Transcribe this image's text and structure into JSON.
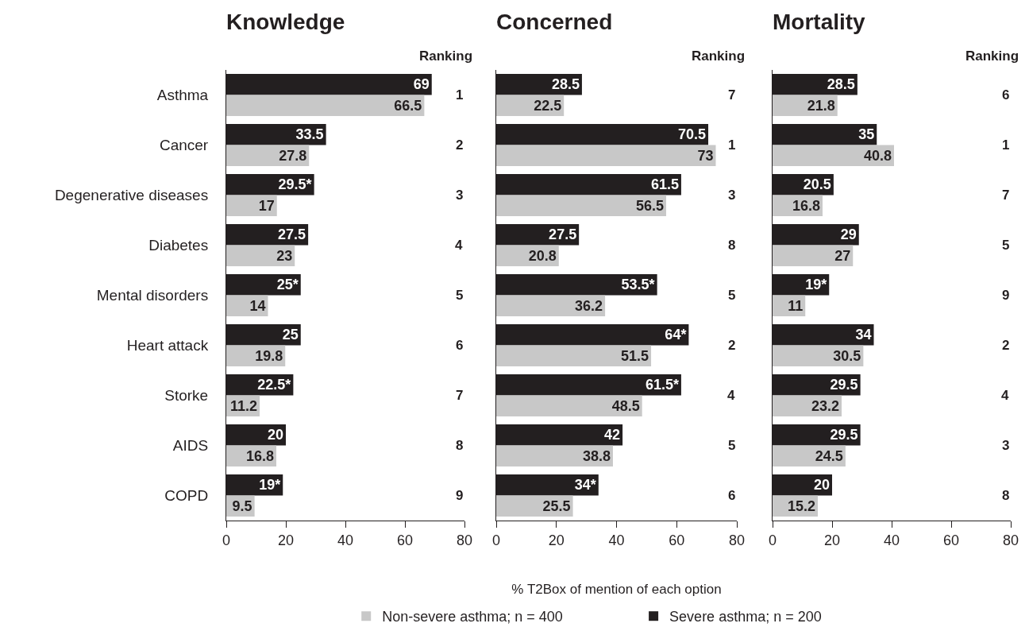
{
  "chart_data": [
    {
      "type": "bar",
      "orientation": "horizontal",
      "title": "Knowledge",
      "categories": [
        "Asthma",
        "Cancer",
        "Degenerative diseases",
        "Diabetes",
        "Mental disorders",
        "Heart attack",
        "Storke",
        "AIDS",
        "COPD"
      ],
      "xlim": [
        0,
        80
      ],
      "xticks": [
        0,
        20,
        40,
        60,
        80
      ],
      "grid": false,
      "series": [
        {
          "color": "#231f20",
          "values": [
            69,
            33.5,
            29.5,
            27.5,
            25,
            25,
            22.5,
            20,
            19
          ],
          "value_labels": [
            "69",
            "33.5",
            "29.5*",
            "27.5",
            "25*",
            "25",
            "22.5*",
            "20",
            "19*"
          ]
        },
        {
          "color": "#c8c8c8",
          "values": [
            66.5,
            27.8,
            17,
            23,
            14,
            19.8,
            11.2,
            16.8,
            9.5
          ],
          "value_labels": [
            "66.5",
            "27.8",
            "17",
            "23",
            "14",
            "19.8",
            "11.2",
            "16.8",
            "9.5"
          ]
        }
      ],
      "annotations": [
        "Ranking",
        "1",
        "2",
        "3",
        "4",
        "5",
        "6",
        "7",
        "8",
        "9"
      ]
    },
    {
      "type": "bar",
      "orientation": "horizontal",
      "title": "Concerned",
      "xlabel": "% T2Box of mention of each option",
      "legend": "bottom",
      "tick_labels": "x",
      "categories": [
        null,
        null,
        null,
        null,
        null,
        null,
        null,
        null,
        null
      ],
      "xlim": [
        0,
        80
      ],
      "xticks": [
        0,
        20,
        40,
        60,
        80
      ],
      "grid": false,
      "series": [
        {
          "name": "Severe asthma; n = 200",
          "color": "#231f20",
          "values": [
            28.5,
            70.5,
            61.5,
            27.5,
            53.5,
            64,
            61.5,
            42,
            34
          ],
          "value_labels": [
            "28.5",
            "70.5",
            "61.5",
            "27.5",
            "53.5*",
            "64*",
            "61.5*",
            "42",
            "34*"
          ]
        },
        {
          "name": "Non-severe asthma; n = 400",
          "color": "#c8c8c8",
          "values": [
            22.5,
            73,
            56.5,
            20.8,
            36.2,
            51.5,
            48.5,
            38.8,
            25.5
          ],
          "value_labels": [
            "22.5",
            "73",
            "56.5",
            "20.8",
            "36.2",
            "51.5",
            "48.5",
            "38.8",
            "25.5"
          ]
        }
      ],
      "annotations": [
        "Ranking",
        "7",
        "1",
        "3",
        "8",
        "5",
        "2",
        "4",
        "5",
        "6"
      ]
    },
    {
      "type": "bar",
      "orientation": "horizontal",
      "title": "Mortality",
      "tick_labels": "x",
      "categories": [
        null,
        null,
        null,
        null,
        null,
        null,
        null,
        null,
        null
      ],
      "xlim": [
        0,
        80
      ],
      "xticks": [
        0,
        20,
        40,
        60,
        80
      ],
      "grid": false,
      "series": [
        {
          "color": "#231f20",
          "values": [
            28.5,
            35,
            20.5,
            29,
            19,
            34,
            29.5,
            29.5,
            20
          ],
          "value_labels": [
            "28.5",
            "35",
            "20.5",
            "29",
            "19*",
            "34",
            "29.5",
            "29.5",
            "20"
          ]
        },
        {
          "color": "#c8c8c8",
          "values": [
            21.8,
            40.8,
            16.8,
            27,
            11,
            30.5,
            23.2,
            24.5,
            15.2
          ],
          "value_labels": [
            "21.8",
            "40.8",
            "16.8",
            "27",
            "11",
            "30.5",
            "23.2",
            "24.5",
            "15.2"
          ]
        }
      ],
      "annotations": [
        "Ranking",
        "6",
        "1",
        "7",
        "5",
        "9",
        "2",
        "4",
        "3",
        "8"
      ]
    }
  ]
}
